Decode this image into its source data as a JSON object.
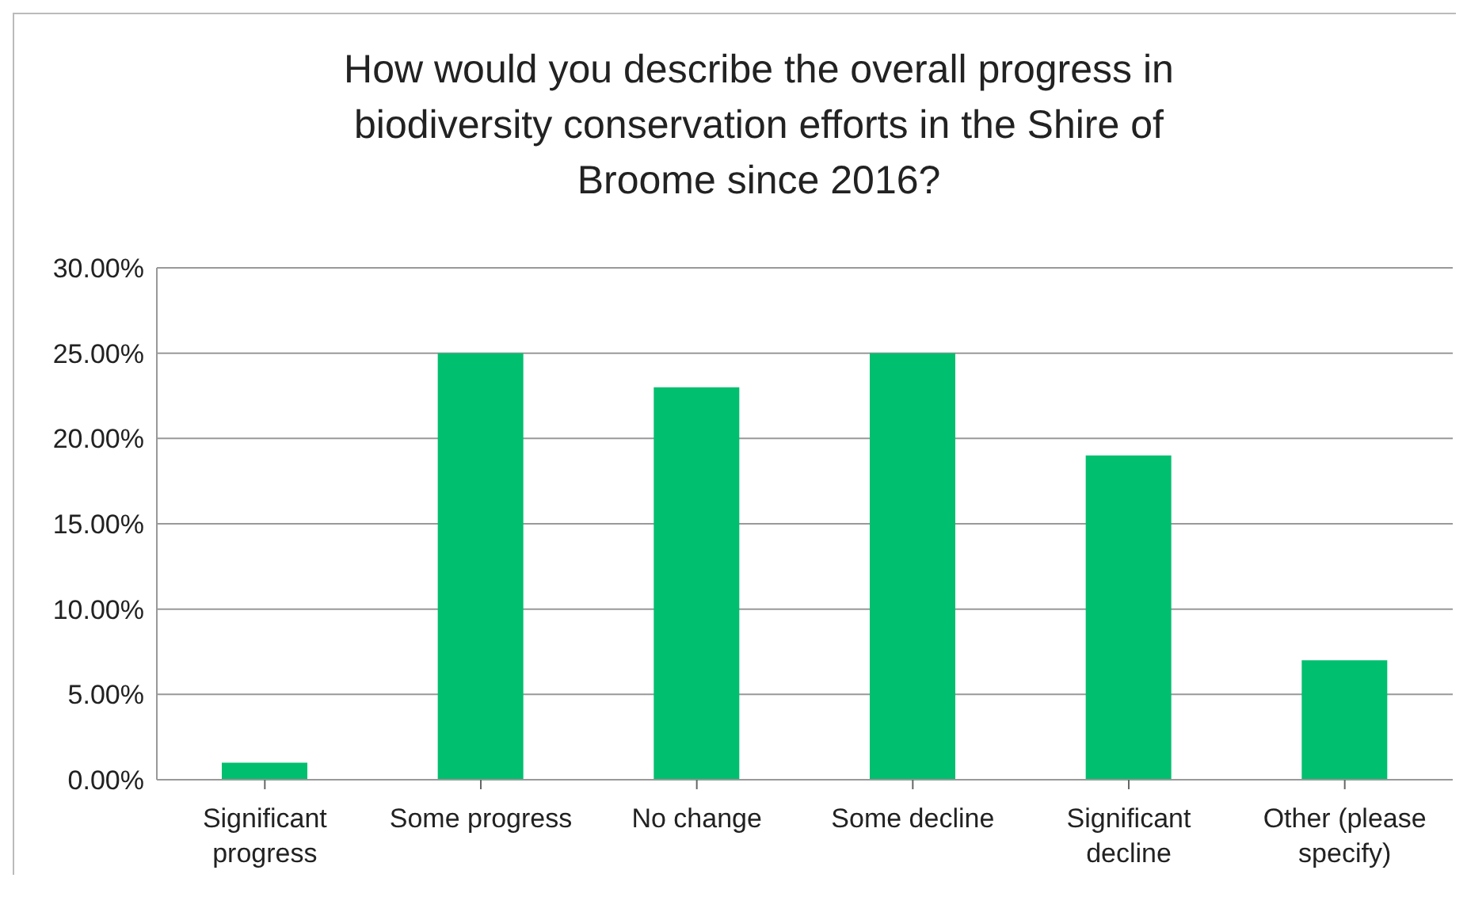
{
  "chart_data": {
    "type": "bar",
    "title": "How would you describe the overall progress in biodiversity conservation efforts in the Shire of Broome since 2016?",
    "categories": [
      "Significant progress",
      "Some progress",
      "No change",
      "Some decline",
      "Significant decline",
      "Other (please specify)"
    ],
    "values": [
      1,
      25,
      23,
      25,
      19,
      7
    ],
    "color": "#00bf6f",
    "ylim": [
      0,
      30
    ],
    "yticks": [
      {
        "value": 0,
        "label": "0.00%"
      },
      {
        "value": 5,
        "label": "5.00%"
      },
      {
        "value": 10,
        "label": "10.00%"
      },
      {
        "value": 15,
        "label": "15.00%"
      },
      {
        "value": 20,
        "label": "20.00%"
      },
      {
        "value": 25,
        "label": "25.00%"
      },
      {
        "value": 30,
        "label": "30.00%"
      }
    ],
    "grid": "y",
    "legend": false
  }
}
